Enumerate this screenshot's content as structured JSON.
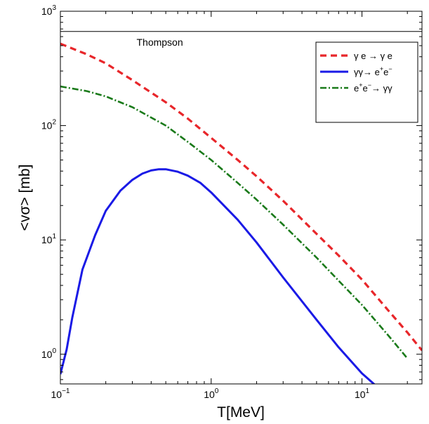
{
  "chart_data": {
    "type": "line",
    "xlabel": "T[MeV]",
    "ylabel": "<vσ> [mb]",
    "xscale": "log",
    "yscale": "log",
    "xlim": [
      0.1,
      25
    ],
    "ylim": [
      0.55,
      1000
    ],
    "x_ticks": [
      {
        "value": 0.1,
        "base": "10",
        "exp": "−1"
      },
      {
        "value": 1,
        "base": "10",
        "exp": "0"
      },
      {
        "value": 10,
        "base": "10",
        "exp": "1"
      }
    ],
    "y_ticks": [
      {
        "value": 1,
        "base": "10",
        "exp": "0"
      },
      {
        "value": 10,
        "base": "10",
        "exp": "1"
      },
      {
        "value": 100,
        "base": "10",
        "exp": "2"
      },
      {
        "value": 1000,
        "base": "10",
        "exp": "3"
      }
    ],
    "grid": false,
    "legend_position": "top-right",
    "annotations": [
      {
        "text": "Thompson",
        "x": 0.32,
        "y": 500
      }
    ],
    "reference_line": {
      "y": 665,
      "color": "#000000"
    },
    "series": [
      {
        "name": "γ e → γ e",
        "legend_parts": [
          {
            "t": "γ e → γ e"
          }
        ],
        "color": "#e8262a",
        "style": "dashed",
        "x": [
          0.1,
          0.15,
          0.2,
          0.3,
          0.5,
          0.7,
          1,
          1.5,
          2,
          3,
          5,
          7,
          10,
          15,
          20,
          25
        ],
        "y": [
          520,
          420,
          350,
          250,
          160,
          115,
          78,
          50,
          36,
          22,
          11.3,
          7.3,
          4.5,
          2.4,
          1.55,
          1.08
        ]
      },
      {
        "name": "γγ→ e+e−",
        "legend_parts": [
          {
            "t": "γγ→ e"
          },
          {
            "t": "+",
            "sup": true
          },
          {
            "t": "e"
          },
          {
            "t": "−",
            "sup": true
          }
        ],
        "color": "#1a1ae6",
        "style": "solid",
        "x": [
          0.1,
          0.11,
          0.12,
          0.14,
          0.17,
          0.2,
          0.25,
          0.3,
          0.35,
          0.4,
          0.45,
          0.5,
          0.6,
          0.7,
          0.85,
          1,
          1.5,
          2,
          3,
          5,
          7,
          10,
          12,
          14
        ],
        "y": [
          0.67,
          1.1,
          2.1,
          5.5,
          11,
          18,
          27,
          33.5,
          38,
          40.5,
          41.5,
          41.5,
          39.5,
          36.5,
          31.5,
          26,
          15,
          9.5,
          4.7,
          2.0,
          1.15,
          0.68,
          0.55,
          0.46
        ]
      },
      {
        "name": "e+e−→ γγ",
        "legend_parts": [
          {
            "t": "e"
          },
          {
            "t": "+",
            "sup": true
          },
          {
            "t": "e"
          },
          {
            "t": "−",
            "sup": true
          },
          {
            "t": "→ γγ"
          }
        ],
        "color": "#1a7a1a",
        "style": "dashdot",
        "x": [
          0.1,
          0.15,
          0.2,
          0.3,
          0.5,
          0.7,
          1,
          1.5,
          2,
          3,
          5,
          7,
          10,
          15,
          20
        ],
        "y": [
          220,
          200,
          180,
          145,
          100,
          72,
          50,
          31.5,
          22.5,
          13.6,
          7.0,
          4.4,
          2.7,
          1.45,
          0.92
        ]
      }
    ]
  }
}
